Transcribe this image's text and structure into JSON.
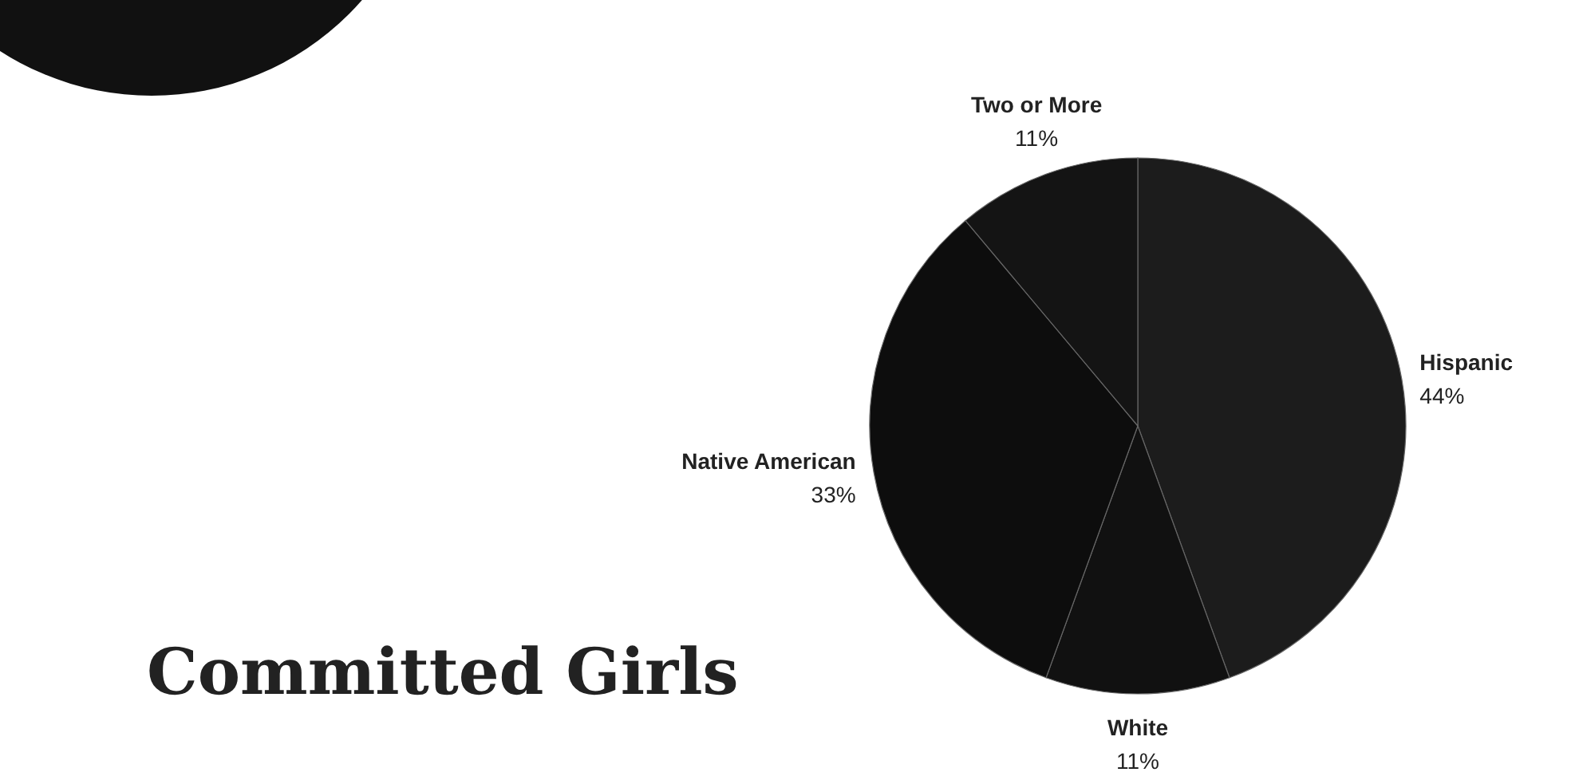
{
  "chart_data": {
    "type": "pie",
    "title": "Committed Girls",
    "categories": [
      "Hispanic",
      "White",
      "Native American",
      "Two or More"
    ],
    "values": [
      44,
      11,
      33,
      11
    ],
    "value_labels": [
      "44%",
      "11%",
      "33%",
      "11%"
    ],
    "colors": [
      "#1c1c1c",
      "#111111",
      "#0d0d0d",
      "#141414"
    ]
  }
}
